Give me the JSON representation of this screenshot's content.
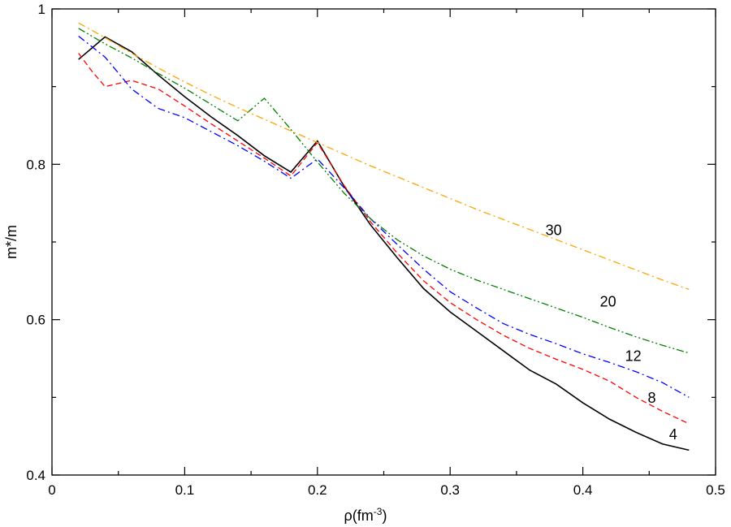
{
  "chart_data": {
    "type": "line",
    "xlabel": "ρ(fm",
    "xlabel_superscript": "-3",
    "xlabel_suffix": ")",
    "ylabel": "m*/m",
    "xlim": [
      0,
      0.5
    ],
    "ylim": [
      0.4,
      1.0
    ],
    "x_ticks": [
      "0",
      "0.1",
      "0.2",
      "0.3",
      "0.4",
      "0.5"
    ],
    "y_ticks": [
      "0.4",
      "0.6",
      "0.8",
      "1"
    ],
    "x_tick_values": [
      0,
      0.1,
      0.2,
      0.3,
      0.4,
      0.5
    ],
    "y_tick_values": [
      0.4,
      0.6,
      0.8,
      1.0
    ],
    "grid": false,
    "legend": "none",
    "series": [
      {
        "label": "4",
        "color": "#000000",
        "style": "solid",
        "x": [
          0.02,
          0.04,
          0.06,
          0.08,
          0.1,
          0.12,
          0.14,
          0.16,
          0.18,
          0.2,
          0.22,
          0.24,
          0.26,
          0.28,
          0.3,
          0.32,
          0.34,
          0.36,
          0.38,
          0.4,
          0.42,
          0.44,
          0.46,
          0.48
        ],
        "y": [
          0.935,
          0.964,
          0.945,
          0.915,
          0.887,
          0.861,
          0.837,
          0.811,
          0.79,
          0.83,
          0.772,
          0.722,
          0.68,
          0.64,
          0.61,
          0.585,
          0.56,
          0.535,
          0.517,
          0.493,
          0.472,
          0.455,
          0.44,
          0.432
        ]
      },
      {
        "label": "8",
        "color": "#ff0000",
        "style": "dashed",
        "x": [
          0.02,
          0.03,
          0.04,
          0.06,
          0.08,
          0.1,
          0.12,
          0.14,
          0.16,
          0.18,
          0.2,
          0.22,
          0.24,
          0.26,
          0.28,
          0.3,
          0.32,
          0.34,
          0.36,
          0.38,
          0.4,
          0.42,
          0.44,
          0.46,
          0.48
        ],
        "y": [
          0.943,
          0.92,
          0.9,
          0.908,
          0.897,
          0.875,
          0.852,
          0.83,
          0.808,
          0.785,
          0.828,
          0.773,
          0.726,
          0.686,
          0.65,
          0.622,
          0.6,
          0.58,
          0.563,
          0.549,
          0.536,
          0.521,
          0.5,
          0.482,
          0.466
        ]
      },
      {
        "label": "12",
        "color": "#0000ff",
        "style": "dash-dot",
        "x": [
          0.02,
          0.04,
          0.06,
          0.08,
          0.1,
          0.12,
          0.14,
          0.16,
          0.18,
          0.2,
          0.22,
          0.24,
          0.26,
          0.28,
          0.3,
          0.32,
          0.34,
          0.36,
          0.38,
          0.4,
          0.42,
          0.44,
          0.46,
          0.48
        ],
        "y": [
          0.965,
          0.938,
          0.897,
          0.872,
          0.86,
          0.842,
          0.824,
          0.804,
          0.782,
          0.807,
          0.77,
          0.73,
          0.697,
          0.665,
          0.636,
          0.615,
          0.595,
          0.581,
          0.569,
          0.556,
          0.545,
          0.533,
          0.519,
          0.5
        ]
      },
      {
        "label": "20",
        "color": "#008000",
        "style": "dash-dot-dot",
        "x": [
          0.02,
          0.04,
          0.06,
          0.08,
          0.1,
          0.12,
          0.14,
          0.16,
          0.18,
          0.2,
          0.22,
          0.24,
          0.26,
          0.28,
          0.3,
          0.32,
          0.34,
          0.36,
          0.38,
          0.4,
          0.42,
          0.44,
          0.46,
          0.48
        ],
        "y": [
          0.975,
          0.955,
          0.937,
          0.917,
          0.898,
          0.877,
          0.856,
          0.885,
          0.845,
          0.803,
          0.763,
          0.73,
          0.703,
          0.682,
          0.665,
          0.651,
          0.639,
          0.627,
          0.615,
          0.603,
          0.59,
          0.578,
          0.567,
          0.557
        ]
      },
      {
        "label": "30",
        "color": "#ffa500",
        "style": "dash-dot",
        "x": [
          0.02,
          0.04,
          0.06,
          0.08,
          0.1,
          0.12,
          0.14,
          0.16,
          0.18,
          0.2,
          0.22,
          0.24,
          0.26,
          0.28,
          0.3,
          0.32,
          0.34,
          0.36,
          0.38,
          0.4,
          0.42,
          0.44,
          0.46,
          0.48
        ],
        "y": [
          0.982,
          0.963,
          0.943,
          0.924,
          0.906,
          0.889,
          0.873,
          0.858,
          0.843,
          0.828,
          0.813,
          0.798,
          0.784,
          0.77,
          0.756,
          0.742,
          0.729,
          0.716,
          0.703,
          0.69,
          0.677,
          0.664,
          0.651,
          0.639
        ]
      }
    ],
    "annotations": [
      {
        "text": "30",
        "x": 0.378,
        "y": 0.709
      },
      {
        "text": "20",
        "x": 0.419,
        "y": 0.617
      },
      {
        "text": "12",
        "x": 0.438,
        "y": 0.547
      },
      {
        "text": "8",
        "x": 0.452,
        "y": 0.493
      },
      {
        "text": "4",
        "x": 0.468,
        "y": 0.446
      }
    ]
  }
}
